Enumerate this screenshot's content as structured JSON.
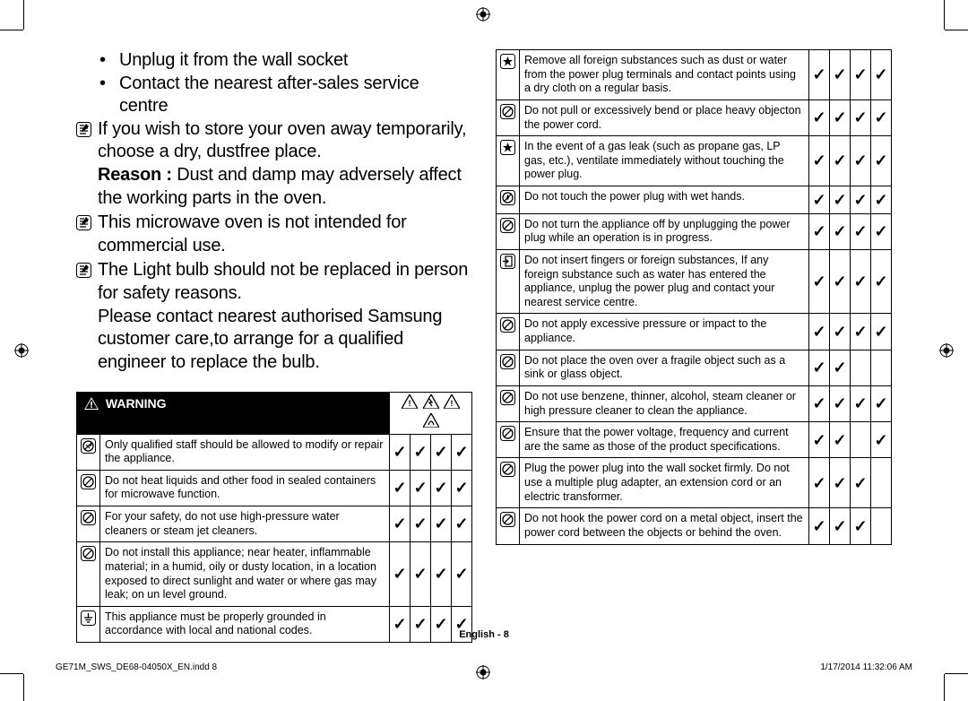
{
  "colors": {
    "text": "#000000",
    "bg": "#ffffff",
    "header_bg": "#000000",
    "header_fg": "#ffffff"
  },
  "typography": {
    "body_fontsize_pt": 15,
    "table_fontsize_pt": 9,
    "footer_fontsize_pt": 8
  },
  "left_bullets": {
    "sub1": "Unplug it from the wall socket",
    "sub2": "Contact the nearest after-sales service centre",
    "p1a": "If you wish to store your oven away temporarily, choose a dry, dustfree place.",
    "p1b_strong": "Reason :",
    "p1b_rest": " Dust and damp may adversely affect the working parts in the oven.",
    "p2": "This microwave oven is not intended for commercial use.",
    "p3a": "The Light bulb should not be replaced in person for safety reasons.",
    "p3b": "Please contact nearest authorised Samsung customer care,to arrange for a qualified engineer to replace the bulb."
  },
  "warning_header": "WARNING",
  "left_table": [
    {
      "icon": "no-tool",
      "text": "Only qualified staff should be allowed to modify or repair the appliance.",
      "checks": [
        true,
        true,
        true,
        true
      ]
    },
    {
      "icon": "prohibit",
      "text": "Do not heat liquids and other food in sealed containers for microwave function.",
      "checks": [
        true,
        true,
        true,
        true
      ]
    },
    {
      "icon": "prohibit",
      "text": "For your safety, do not use high-pressure water cleaners or steam jet cleaners.",
      "checks": [
        true,
        true,
        true,
        true
      ]
    },
    {
      "icon": "prohibit",
      "text": "Do not install this appliance; near heater, inflammable material; in a humid, oily or dusty location, in a location exposed to direct sunlight and water or where gas may leak; on un level ground.",
      "checks": [
        true,
        true,
        true,
        true
      ]
    },
    {
      "icon": "ground",
      "text": "This appliance must be properly grounded in accordance with local and national codes.",
      "checks": [
        true,
        true,
        true,
        true
      ]
    }
  ],
  "right_table": [
    {
      "icon": "star",
      "text": "Remove all foreign substances such as dust or water from the power plug terminals and contact points using a dry cloth on a regular basis.",
      "checks": [
        true,
        true,
        true,
        true
      ]
    },
    {
      "icon": "prohibit",
      "text": "Do not pull or excessively bend or place heavy objecton the power cord.",
      "checks": [
        true,
        true,
        true,
        true
      ]
    },
    {
      "icon": "star",
      "text": "In the event of a gas leak (such as propane gas, LP gas, etc.), ventilate immediately without touching the power plug.",
      "checks": [
        true,
        true,
        true,
        true
      ]
    },
    {
      "icon": "no-wet",
      "text": "Do not touch the power plug with wet hands.",
      "checks": [
        true,
        true,
        true,
        true
      ]
    },
    {
      "icon": "prohibit",
      "text": "Do not turn the appliance off by unplugging the power plug while an operation is in progress.",
      "checks": [
        true,
        true,
        true,
        true
      ]
    },
    {
      "icon": "no-insert",
      "text": "Do not insert fingers or foreign substances, If any foreign substance such as water has entered the appliance, unplug the power plug and contact your nearest service centre.",
      "checks": [
        true,
        true,
        true,
        true
      ]
    },
    {
      "icon": "prohibit",
      "text": "Do not apply excessive pressure or impact to the appliance.",
      "checks": [
        true,
        true,
        true,
        true
      ]
    },
    {
      "icon": "prohibit",
      "text": "Do not place the oven over a fragile object such as a sink or glass object.",
      "checks": [
        true,
        true,
        false,
        false
      ]
    },
    {
      "icon": "prohibit",
      "text": "Do not use benzene, thinner, alcohol, steam cleaner or high pressure cleaner to clean the appliance.",
      "checks": [
        true,
        true,
        true,
        true
      ]
    },
    {
      "icon": "prohibit",
      "text": "Ensure that the power voltage, frequency and current are the same as those of the product specifications.",
      "checks": [
        true,
        true,
        false,
        true
      ]
    },
    {
      "icon": "prohibit",
      "text": "Plug the power plug into the wall socket firmly. Do not use a multiple plug adapter, an extension cord or an electric transformer.",
      "checks": [
        true,
        true,
        true,
        false
      ]
    },
    {
      "icon": "prohibit",
      "text": "Do not hook the power cord on a metal object, insert the power cord between the objects or behind the oven.",
      "checks": [
        true,
        true,
        true,
        false
      ]
    }
  ],
  "footer": {
    "center": "English - 8",
    "left": "GE71M_SWS_DE68-04050X_EN.indd   8",
    "right": "1/17/2014   11:32:06 AM"
  }
}
